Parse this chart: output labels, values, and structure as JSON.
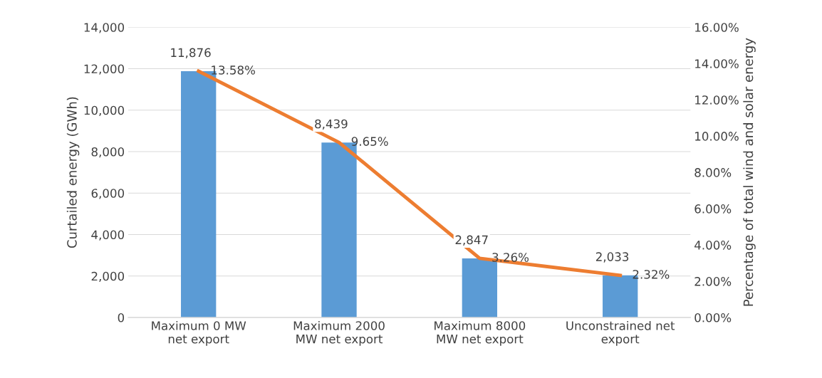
{
  "chart_data": {
    "type": "bar",
    "ylabel": "Curtailed energy (GWh)",
    "y2label": "Percentage of total wind and solar energy",
    "categories": [
      "Maximum 0 MW\nnet export",
      "Maximum 2000\nMW net export",
      "Maximum 8000\nMW net export",
      "Unconstrained net\nexport"
    ],
    "series": [
      {
        "color": "#5b9bd5",
        "values": [
          11876,
          8439,
          2847,
          2033
        ],
        "value_labels": [
          "11,876",
          "8,439",
          "2,847",
          "2,033"
        ]
      },
      {
        "type": "line",
        "axis": "y2",
        "color": "#ed7d31",
        "values": [
          13.58,
          9.65,
          3.26,
          2.32
        ],
        "value_labels": [
          "13.58%",
          "9.65%",
          "3.26%",
          "2.32%"
        ]
      }
    ],
    "ylim": [
      0,
      14000
    ],
    "yticks": [
      0,
      {
        "value": 2000,
        "label": "2,000"
      },
      {
        "value": 4000,
        "label": "4,000"
      },
      {
        "value": 6000,
        "label": "6,000"
      },
      {
        "value": 8000,
        "label": "8,000"
      },
      {
        "value": 10000,
        "label": "10,000"
      },
      {
        "value": 12000,
        "label": "12,000"
      },
      {
        "value": 14000,
        "label": "14,000"
      }
    ],
    "y2lim": [
      0,
      16
    ],
    "y2ticks": [
      {
        "value": 0,
        "label": "0.00%"
      },
      {
        "value": 2,
        "label": "2.00%"
      },
      {
        "value": 4,
        "label": "4.00%"
      },
      {
        "value": 6,
        "label": "6.00%"
      },
      {
        "value": 8,
        "label": "8.00%"
      },
      {
        "value": 10,
        "label": "10.00%"
      },
      {
        "value": 12,
        "label": "12.00%"
      },
      {
        "value": 14,
        "label": "14.00%"
      },
      {
        "value": 16,
        "label": "16.00%"
      }
    ],
    "grid": "y",
    "legend": false
  }
}
